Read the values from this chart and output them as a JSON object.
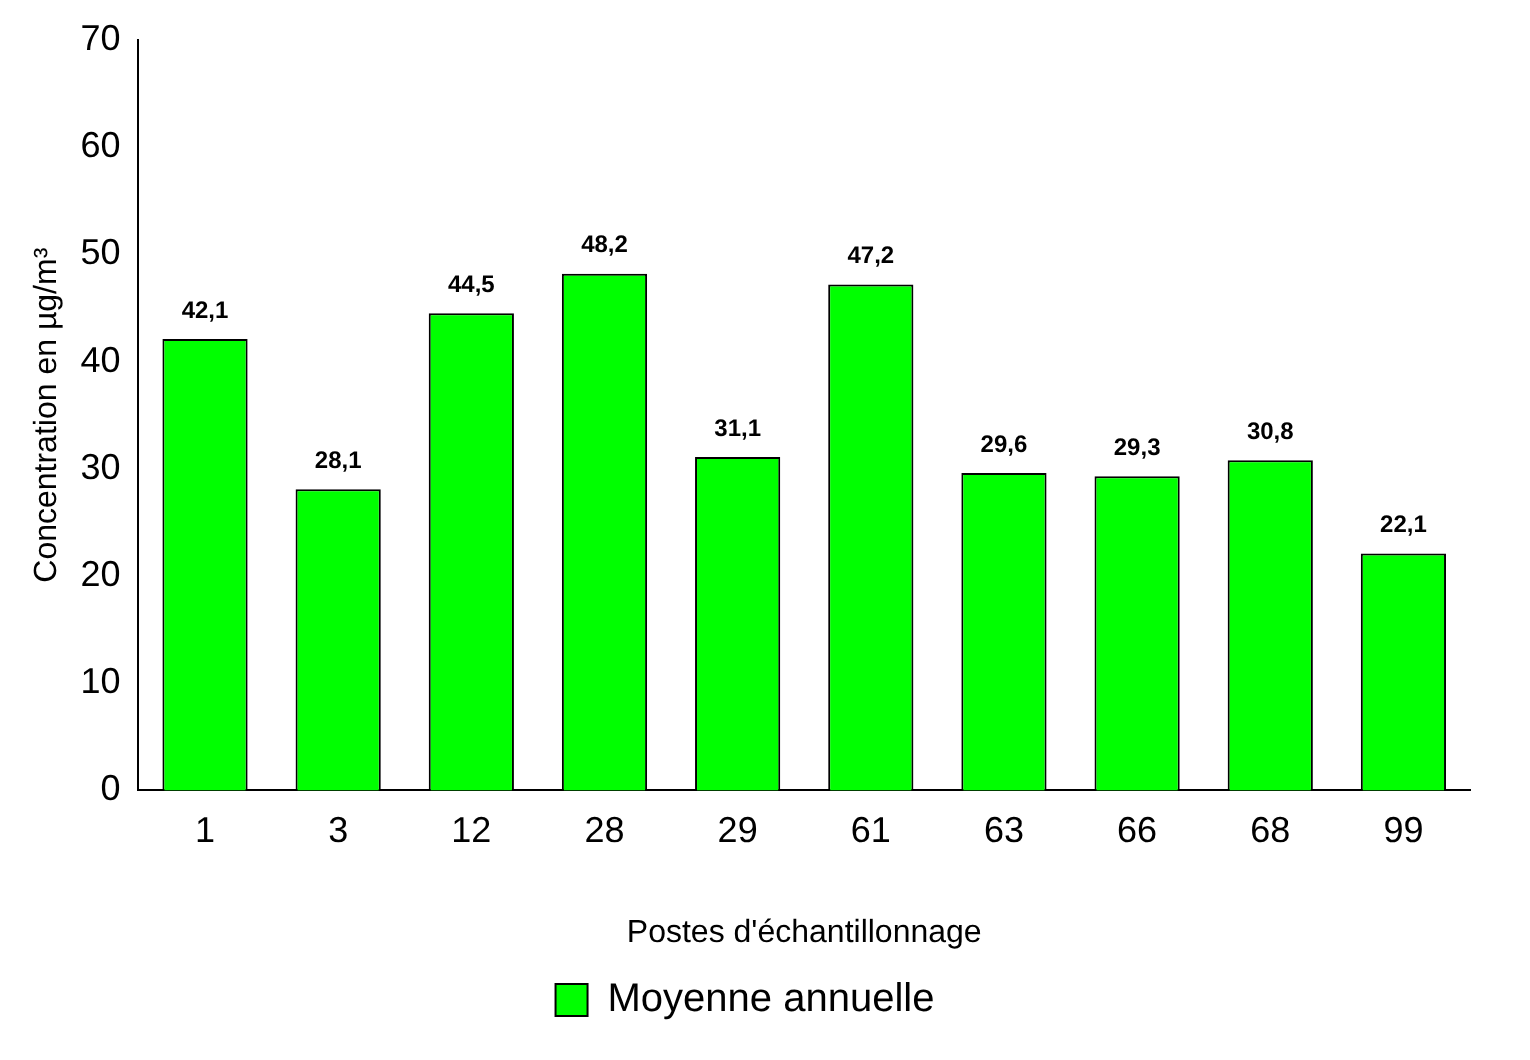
{
  "chart_data": {
    "type": "bar",
    "xlabel": "Postes d'échantillonnage",
    "ylabel": "Concentration en µg/m³",
    "categories": [
      "1",
      "3",
      "12",
      "28",
      "29",
      "61",
      "63",
      "66",
      "68",
      "99"
    ],
    "series": [
      {
        "name": "Moyenne annuelle",
        "color": "#00ff00",
        "values": [
          42.1,
          28.1,
          44.5,
          48.2,
          31.1,
          47.2,
          29.6,
          29.3,
          30.8,
          22.1
        ],
        "value_labels": [
          "42,1",
          "28,1",
          "44,5",
          "48,2",
          "31,1",
          "47,2",
          "29,6",
          "29,3",
          "30,8",
          "22,1"
        ]
      }
    ],
    "ylim": [
      0,
      70
    ],
    "yticks": [
      0,
      10,
      20,
      30,
      40,
      50,
      60,
      70
    ],
    "legend": "bottom"
  }
}
